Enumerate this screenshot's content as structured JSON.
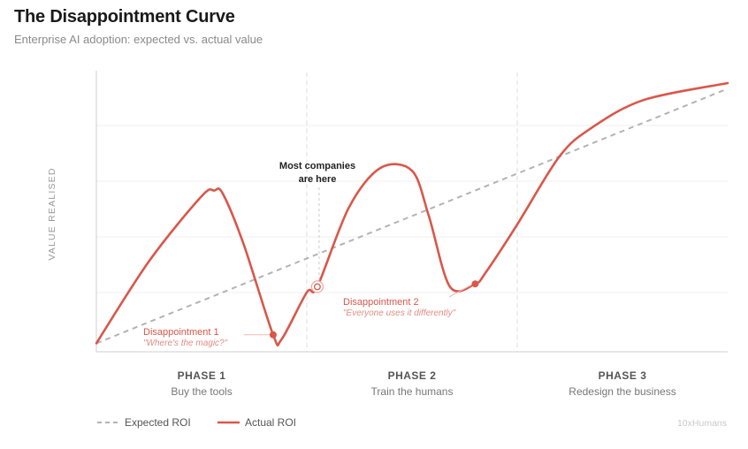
{
  "header": {
    "title": "The Disappointment Curve",
    "subtitle": "Enterprise AI adoption: expected vs. actual value"
  },
  "chart_data": {
    "type": "line",
    "title": "The Disappointment Curve",
    "subtitle": "Enterprise AI adoption: expected vs. actual value",
    "ylabel": "VALUE REALISED",
    "xlim": [
      0,
      3
    ],
    "ylim": [
      0,
      5
    ],
    "grid": true,
    "x_ticks_shown": false,
    "y_ticks_shown": false,
    "phases": [
      {
        "label": "PHASE 1",
        "sublabel": "Buy the tools",
        "range": [
          0,
          1
        ]
      },
      {
        "label": "PHASE 2",
        "sublabel": "Train the humans",
        "range": [
          1,
          2
        ]
      },
      {
        "label": "PHASE 3",
        "sublabel": "Redesign the business",
        "range": [
          2,
          3
        ]
      }
    ],
    "series": [
      {
        "name": "Expected ROI",
        "style": "dashed",
        "color": "#b3b3b3",
        "x": [
          0,
          3
        ],
        "y": [
          0.15,
          4.65
        ]
      },
      {
        "name": "Actual ROI",
        "style": "solid",
        "color": "#d9574a",
        "x": [
          0,
          0.25,
          0.5,
          0.56,
          0.6,
          0.7,
          0.84,
          0.88,
          1.0,
          1.05,
          1.2,
          1.35,
          1.5,
          1.58,
          1.68,
          1.8,
          1.85,
          2.0,
          2.2,
          2.35,
          2.6,
          3.0
        ],
        "y": [
          0.15,
          1.6,
          2.75,
          2.85,
          2.8,
          1.9,
          0.3,
          0.22,
          1.05,
          1.15,
          2.55,
          3.25,
          3.2,
          2.4,
          1.15,
          1.2,
          1.4,
          2.25,
          3.45,
          3.95,
          4.45,
          4.75
        ]
      }
    ],
    "annotations": [
      {
        "text_lines": [
          "Most companies",
          "are here"
        ],
        "x": 1.05,
        "y": 1.15,
        "marker": "ring"
      },
      {
        "title": "Disappointment 1",
        "quote": "\"Where's the magic?\"",
        "x": 0.84,
        "y": 0.3,
        "marker": "dot"
      },
      {
        "title": "Disappointment 2",
        "quote": "\"Everyone uses it differently\"",
        "x": 1.8,
        "y": 1.2,
        "marker": "dot"
      }
    ],
    "legend": {
      "placement": "bottom-left",
      "entries": [
        "Expected ROI",
        "Actual ROI"
      ]
    },
    "watermark": "10xHumans"
  }
}
